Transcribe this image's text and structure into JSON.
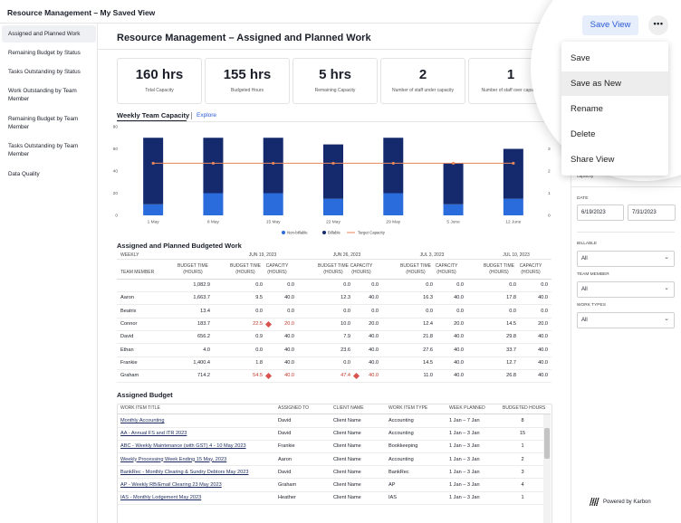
{
  "header": {
    "title": "Resource Management – My Saved View",
    "save_button": "Save View"
  },
  "menu": [
    "Save",
    "Save as New",
    "Rename",
    "Delete",
    "Share View"
  ],
  "sidebar": [
    "Assigned and Planned Work",
    "Remaining Budget by Status",
    "Tasks Outstanding by Status",
    "Work Outstanding by Team Member",
    "Remaining Budget by Team Member",
    "Tasks Outstanding by Team Member",
    "Data Quality"
  ],
  "page_title": "Resource Management – Assigned and Planned Work",
  "kpis": [
    {
      "value": "160 hrs",
      "label": "Total Capacity"
    },
    {
      "value": "155 hrs",
      "label": "Budgeted Hours"
    },
    {
      "value": "5 hrs",
      "label": "Remaining Capacity"
    },
    {
      "value": "2",
      "label": "Number of staff under capacity"
    },
    {
      "value": "1",
      "label": "Number of staff over capacity"
    }
  ],
  "chart_data": {
    "type": "bar",
    "stacked": true,
    "title": "Weekly Team Capacity",
    "link": "Explore",
    "categories": [
      "1 May",
      "8 May",
      "15 May",
      "22 May",
      "29 May",
      "5 June",
      "12 June"
    ],
    "series": [
      {
        "name": "Non-billable",
        "color": "#2b6cdc",
        "values": [
          10,
          20,
          20,
          15,
          20,
          10,
          15
        ]
      },
      {
        "name": "Billable",
        "color": "#152a6d",
        "values": [
          60,
          50,
          50,
          49,
          50,
          37,
          45
        ]
      },
      {
        "name": "Target Capacity",
        "type": "line",
        "color": "#e8865a",
        "values": [
          47,
          47,
          47,
          47,
          47,
          47,
          47
        ]
      }
    ],
    "ylim": [
      0,
      80
    ],
    "yticks": [
      0,
      20,
      40,
      60,
      80
    ],
    "y2lim": [
      0,
      4
    ],
    "y2ticks": [
      0,
      1,
      2,
      3,
      4
    ],
    "grid": false
  },
  "budget_table": {
    "title": "Assigned and Planned Budgeted Work",
    "group_label": "WEEKLY",
    "weeks": [
      "JUN 19, 2023",
      "JUN 26, 2023",
      "JUL 3, 2023",
      "JUL 10, 2023"
    ],
    "first_column": "TEAM MEMBER",
    "columns": [
      "BUDGET TIME (HOURS)",
      "CAPACITY (HOURS)"
    ],
    "rows": [
      {
        "name": null,
        "total": "1,082.9",
        "weeks": [
          [
            "0.0",
            "0.0"
          ],
          [
            "0.0",
            "0.0"
          ],
          [
            "0.0",
            "0.0"
          ],
          [
            "0.0",
            "0.0"
          ]
        ]
      },
      {
        "name": "Aaron",
        "total": "1,663.7",
        "weeks": [
          [
            "9.5",
            "40.0"
          ],
          [
            "12.3",
            "40.0"
          ],
          [
            "16.3",
            "40.0"
          ],
          [
            "17.8",
            "40.0"
          ]
        ]
      },
      {
        "name": "Beatrix",
        "total": "13.4",
        "weeks": [
          [
            "0.0",
            "0.0"
          ],
          [
            "0.0",
            "0.0"
          ],
          [
            "0.0",
            "0.0"
          ],
          [
            "0.0",
            "0.0"
          ]
        ]
      },
      {
        "name": "Connor",
        "total": "183.7",
        "weeks": [
          [
            "22.5",
            "20.0"
          ],
          [
            "10.0",
            "20.0"
          ],
          [
            "12.4",
            "20.0"
          ],
          [
            "14.5",
            "20.0"
          ]
        ]
      },
      {
        "name": "David",
        "total": "656.2",
        "weeks": [
          [
            "0.9",
            "40.0"
          ],
          [
            "7.9",
            "40.0"
          ],
          [
            "21.8",
            "40.0"
          ],
          [
            "29.8",
            "40.0"
          ]
        ]
      },
      {
        "name": "Ethan",
        "total": "4.0",
        "weeks": [
          [
            "0.0",
            "40.0"
          ],
          [
            "23.6",
            "40.0"
          ],
          [
            "27.6",
            "40.0"
          ],
          [
            "33.7",
            "40.0"
          ]
        ]
      },
      {
        "name": "Frankie",
        "total": "1,400.4",
        "weeks": [
          [
            "1.8",
            "40.0"
          ],
          [
            "0.0",
            "40.0"
          ],
          [
            "14.5",
            "40.0"
          ],
          [
            "12.7",
            "40.0"
          ]
        ]
      },
      {
        "name": "Graham",
        "total": "714.2",
        "weeks": [
          [
            "54.5",
            "40.0"
          ],
          [
            "47.4",
            "40.0"
          ],
          [
            "11.0",
            "40.0"
          ],
          [
            "26.8",
            "40.0"
          ]
        ]
      }
    ]
  },
  "assigned_table": {
    "title": "Assigned Budget",
    "columns": [
      "WORK ITEM TITLE",
      "ASSIGNED TO",
      "CLIENT NAME",
      "WORK ITEM TYPE",
      "WEEK PLANNED",
      "BUDGETED HOURS"
    ],
    "rows": [
      [
        "Monthly Accounting",
        "David",
        "Client Name",
        "Accounting",
        "1 Jan – 7 Jan",
        "8"
      ],
      [
        "AA - Annual FS and ITR 2023",
        "David",
        "Client Name",
        "Accounting",
        "1 Jan – 3 Jan",
        "15"
      ],
      [
        "ABC - Weekly Maintenance (with GST) 4 - 10 May 2023",
        "Frankie",
        "Client Name",
        "Bookkeeping",
        "1 Jan – 3 Jan",
        "1"
      ],
      [
        "Weekly Processing Week Ending 15 May, 2023",
        "Aaron",
        "Client Name",
        "Accounting",
        "1 Jan – 3 Jan",
        "2"
      ],
      [
        "BankRec - Monthly Clearing & Sundry Debtors May 2023",
        "David",
        "Client Name",
        "BankRec",
        "1 Jan – 3 Jan",
        "3"
      ],
      [
        "AP - Weekly RB/Email Clearing 23 May 2023",
        "Graham",
        "Client Name",
        "AP",
        "1 Jan – 3 Jan",
        "4"
      ],
      [
        "IAS - Monthly Lodgement May 2023",
        "Heather",
        "Client Name",
        "IAS",
        "1 Jan – 3 Jan",
        "1"
      ]
    ]
  },
  "filters": {
    "partial_label": "capacity",
    "date": {
      "label": "DATE",
      "from": "6/19/2023",
      "to": "7/31/2023"
    },
    "selects": [
      {
        "label": "BILLABLE",
        "value": "All"
      },
      {
        "label": "TEAM MEMBER",
        "value": "All"
      },
      {
        "label": "WORK TYPES",
        "value": "All"
      }
    ]
  },
  "footer": "Powered by Karbon"
}
